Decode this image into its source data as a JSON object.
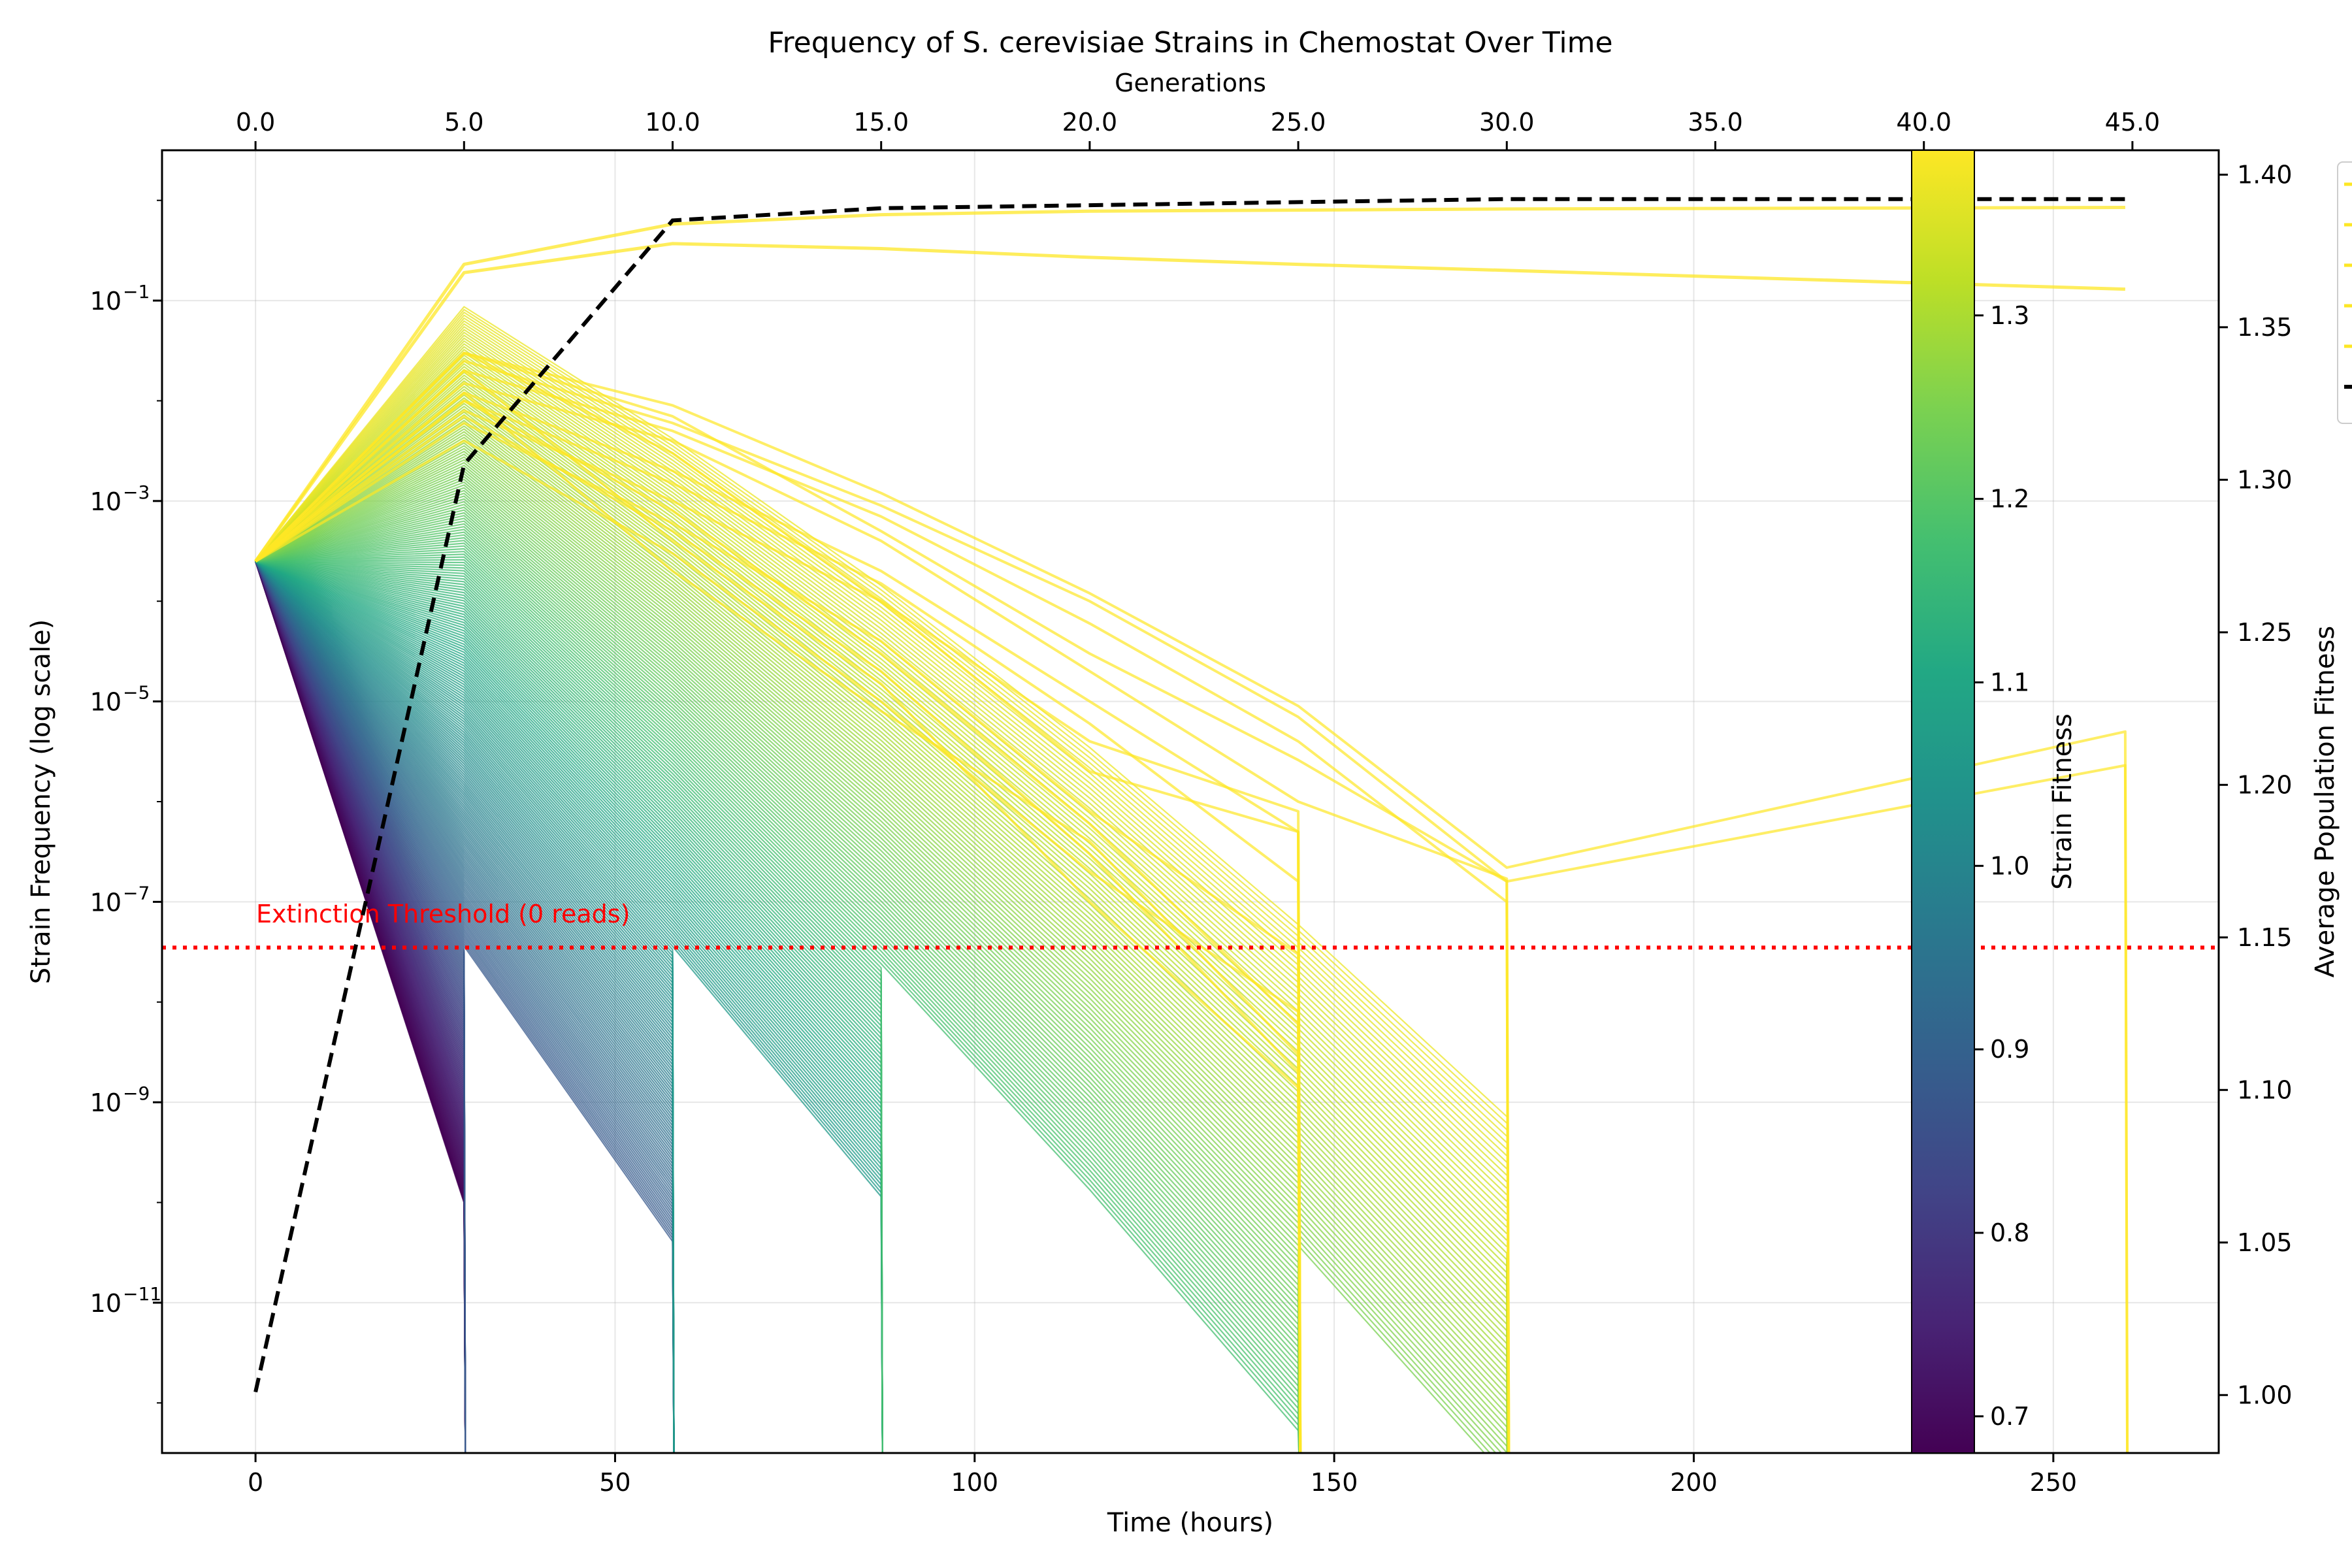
{
  "chart_data": {
    "type": "line",
    "title": "Frequency of S. cerevisiae Strains in Chemostat Over Time",
    "xlabel": "Time (hours)",
    "ylabel": "Strain Frequency (log scale)",
    "y2label": "Average Population Fitness",
    "top_xlabel": "Generations",
    "colorbar_label": "Strain Fitness",
    "xlim": [
      -13,
      273
    ],
    "ylim_log10": [
      -12.5,
      0.5
    ],
    "y_scale": "log",
    "y2lim": [
      0.981,
      1.408
    ],
    "grid": true,
    "legend": "right, clipped",
    "x_ticks": [
      "0",
      "50",
      "100",
      "150",
      "200",
      "250"
    ],
    "top_ticks": [
      "0.0",
      "5.0",
      "10.0",
      "15.0",
      "20.0",
      "25.0",
      "30.0",
      "35.0",
      "40.0",
      "45.0"
    ],
    "y_ticks": [
      {
        "base": "10",
        "exp": "−1"
      },
      {
        "base": "10",
        "exp": "−3"
      },
      {
        "base": "10",
        "exp": "−5"
      },
      {
        "base": "10",
        "exp": "−7"
      },
      {
        "base": "10",
        "exp": "−9"
      },
      {
        "base": "10",
        "exp": "−11"
      }
    ],
    "y2_ticks": [
      "1.00",
      "1.05",
      "1.10",
      "1.15",
      "1.20",
      "1.25",
      "1.30",
      "1.35",
      "1.40"
    ],
    "colorbar_ticks": [
      "0.7",
      "0.8",
      "0.9",
      "1.0",
      "1.1",
      "1.2",
      "1.3"
    ],
    "colorbar_range": [
      0.68,
      1.39
    ],
    "colormap_stops": [
      "#440154",
      "#482475",
      "#414487",
      "#355f8d",
      "#2a788e",
      "#21918c",
      "#22a884",
      "#44bf70",
      "#7ad151",
      "#bddf26",
      "#fde725"
    ],
    "sample_times_hours": [
      0,
      29,
      58,
      87,
      116,
      145,
      174,
      260
    ],
    "initial_frequency": 0.00025,
    "extinction": {
      "threshold": 3.5e-08,
      "label": "Extinction Threshold (0 reads)",
      "color": "#ff0000"
    },
    "dominant_series": [
      {
        "fitness": 1.39,
        "color": "#fde725",
        "values": [
          0.00025,
          0.23,
          0.58,
          0.72,
          0.78,
          0.8,
          0.82,
          0.85
        ]
      },
      {
        "fitness": 1.39,
        "color": "#fde725",
        "values": [
          0.00025,
          0.19,
          0.37,
          0.33,
          0.27,
          0.23,
          0.2,
          0.13
        ]
      }
    ],
    "surviving_series": [
      {
        "fitness": 1.38,
        "values": [
          0.00025,
          0.006,
          0.0005,
          4e-05,
          4e-06,
          1.2e-06,
          4e-07,
          1.5e-07
        ]
      },
      {
        "fitness": 1.38,
        "values": [
          0.00025,
          0.006,
          0.0004,
          4e-05,
          4e-06,
          1.2e-06,
          4e-07,
          1.5e-07
        ]
      }
    ],
    "mean_fitness": {
      "name": "Average Population Fitness",
      "color": "#000000",
      "x": [
        0,
        29,
        58,
        87,
        116,
        145,
        174,
        260
      ],
      "values": [
        1.001,
        1.305,
        1.385,
        1.389,
        1.39,
        1.391,
        1.392,
        1.392
      ]
    }
  }
}
